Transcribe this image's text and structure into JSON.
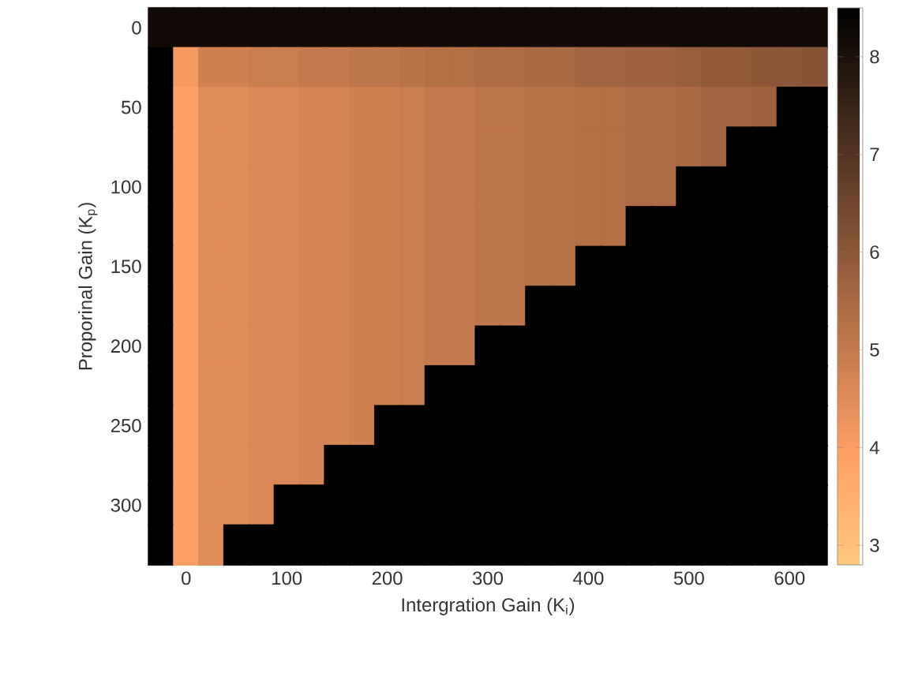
{
  "chart_data": {
    "type": "heatmap",
    "xlabel": "Intergration Gain (K$_{i}$)",
    "ylabel": "Proporinal Gain (K$_{p}$)",
    "clim": [
      2.8,
      8.5
    ],
    "cticks": [
      3,
      4,
      5,
      6,
      7,
      8
    ],
    "categories": [
      null,
      "0",
      null,
      null,
      null,
      "100",
      null,
      null,
      null,
      "200",
      null,
      null,
      null,
      "300",
      null,
      null,
      null,
      "400",
      null,
      null,
      null,
      "500",
      null,
      null,
      null,
      "600",
      null
    ],
    "y_categories": [
      "0",
      null,
      "50",
      null,
      "100",
      null,
      "150",
      null,
      "200",
      null,
      "250",
      null,
      "300",
      null
    ],
    "cells": [
      [
        8.2,
        8.2,
        8.2,
        8.2,
        8.2,
        8.2,
        8.2,
        8.2,
        8.2,
        8.2,
        8.2,
        8.2,
        8.2,
        8.2,
        8.2,
        8.2,
        8.2,
        8.2,
        8.2,
        8.2,
        8.2,
        8.2,
        8.2,
        8.2,
        8.2,
        8.2,
        8.2
      ],
      [
        8.5,
        4.1,
        4.8,
        4.8,
        4.9,
        4.9,
        5.0,
        5.0,
        5.1,
        5.1,
        5.2,
        5.3,
        5.3,
        5.4,
        5.4,
        5.5,
        5.5,
        5.6,
        5.6,
        5.7,
        5.7,
        5.8,
        5.9,
        5.9,
        6.0,
        6.0,
        6.1
      ],
      [
        8.5,
        3.9,
        4.5,
        4.5,
        4.6,
        4.6,
        4.7,
        4.7,
        4.8,
        4.8,
        4.9,
        5.0,
        5.0,
        5.1,
        5.1,
        5.2,
        5.2,
        5.3,
        5.3,
        5.4,
        5.4,
        5.5,
        5.6,
        5.6,
        5.7,
        8.5,
        8.5
      ],
      [
        8.5,
        3.9,
        4.5,
        4.5,
        4.6,
        4.6,
        4.7,
        4.7,
        4.8,
        4.8,
        4.9,
        5.0,
        5.0,
        5.1,
        5.1,
        5.2,
        5.2,
        5.3,
        5.3,
        5.4,
        5.4,
        5.5,
        5.6,
        8.5,
        8.5,
        8.5,
        8.5
      ],
      [
        8.5,
        3.9,
        4.5,
        4.5,
        4.6,
        4.6,
        4.7,
        4.7,
        4.8,
        4.8,
        4.9,
        5.0,
        5.0,
        5.1,
        5.1,
        5.2,
        5.2,
        5.3,
        5.3,
        5.4,
        5.4,
        8.5,
        8.5,
        8.5,
        8.5,
        8.5,
        8.5
      ],
      [
        8.5,
        3.9,
        4.5,
        4.5,
        4.6,
        4.6,
        4.7,
        4.7,
        4.8,
        4.8,
        4.9,
        5.0,
        5.0,
        5.1,
        5.1,
        5.2,
        5.2,
        5.3,
        5.3,
        8.5,
        8.5,
        8.5,
        8.5,
        8.5,
        8.5,
        8.5,
        8.5
      ],
      [
        8.5,
        3.9,
        4.5,
        4.5,
        4.6,
        4.6,
        4.7,
        4.7,
        4.8,
        4.8,
        4.9,
        5.0,
        5.0,
        5.1,
        5.1,
        5.2,
        5.2,
        8.5,
        8.5,
        8.5,
        8.5,
        8.5,
        8.5,
        8.5,
        8.5,
        8.5,
        8.5
      ],
      [
        8.5,
        3.9,
        4.5,
        4.5,
        4.6,
        4.6,
        4.7,
        4.7,
        4.8,
        4.8,
        4.9,
        5.0,
        5.0,
        5.1,
        5.1,
        8.5,
        8.5,
        8.5,
        8.5,
        8.5,
        8.5,
        8.5,
        8.5,
        8.5,
        8.5,
        8.5,
        8.5
      ],
      [
        8.5,
        3.9,
        4.5,
        4.5,
        4.6,
        4.6,
        4.7,
        4.7,
        4.8,
        4.8,
        4.9,
        5.0,
        5.0,
        8.5,
        8.5,
        8.5,
        8.5,
        8.5,
        8.5,
        8.5,
        8.5,
        8.5,
        8.5,
        8.5,
        8.5,
        8.5,
        8.5
      ],
      [
        8.5,
        3.9,
        4.5,
        4.5,
        4.6,
        4.6,
        4.7,
        4.7,
        4.8,
        4.8,
        4.9,
        8.5,
        8.5,
        8.5,
        8.5,
        8.5,
        8.5,
        8.5,
        8.5,
        8.5,
        8.5,
        8.5,
        8.5,
        8.5,
        8.5,
        8.5,
        8.5
      ],
      [
        8.5,
        3.9,
        4.5,
        4.5,
        4.6,
        4.6,
        4.7,
        4.7,
        4.8,
        8.5,
        8.5,
        8.5,
        8.5,
        8.5,
        8.5,
        8.5,
        8.5,
        8.5,
        8.5,
        8.5,
        8.5,
        8.5,
        8.5,
        8.5,
        8.5,
        8.5,
        8.5
      ],
      [
        8.5,
        3.9,
        4.5,
        4.5,
        4.6,
        4.6,
        4.7,
        8.5,
        8.5,
        8.5,
        8.5,
        8.5,
        8.5,
        8.5,
        8.5,
        8.5,
        8.5,
        8.5,
        8.5,
        8.5,
        8.5,
        8.5,
        8.5,
        8.5,
        8.5,
        8.5,
        8.5
      ],
      [
        8.5,
        3.9,
        4.5,
        4.5,
        4.6,
        8.5,
        8.5,
        8.5,
        8.5,
        8.5,
        8.5,
        8.5,
        8.5,
        8.5,
        8.5,
        8.5,
        8.5,
        8.5,
        8.5,
        8.5,
        8.5,
        8.5,
        8.5,
        8.5,
        8.5,
        8.5,
        8.5
      ],
      [
        8.5,
        3.9,
        4.5,
        8.5,
        8.5,
        8.5,
        8.5,
        8.5,
        8.5,
        8.5,
        8.5,
        8.5,
        8.5,
        8.5,
        8.5,
        8.5,
        8.5,
        8.5,
        8.5,
        8.5,
        8.5,
        8.5,
        8.5,
        8.5,
        8.5,
        8.5,
        8.5
      ]
    ]
  }
}
